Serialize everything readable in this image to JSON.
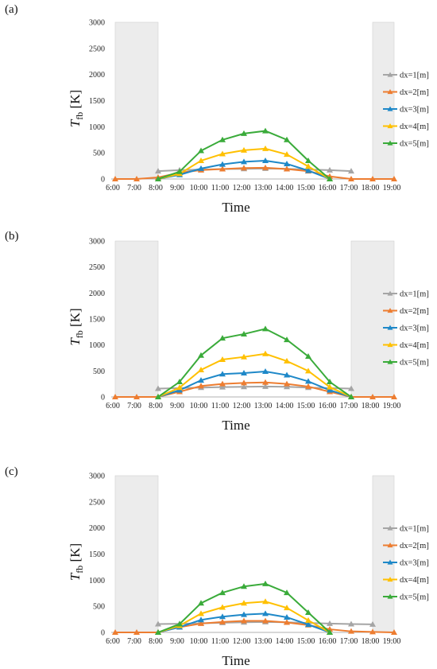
{
  "chart_data": [
    {
      "type": "line",
      "panel_label": "(a)",
      "xlabel": "Time",
      "ylabel_main": "T",
      "ylabel_sub": "fb",
      "ylabel_unit": " [K]",
      "categories": [
        "6:00",
        "7:00",
        "8:00",
        "9:00",
        "10:00",
        "11:00",
        "12:00",
        "13:00",
        "14:00",
        "15:00",
        "16:00",
        "17:00",
        "18:00",
        "19:00"
      ],
      "ylim": [
        0,
        3000
      ],
      "yticks": [
        0,
        500,
        1000,
        1500,
        2000,
        2500,
        3000
      ],
      "shaded_ranges": [
        [
          "6:00",
          "8:00"
        ],
        [
          "18:00",
          "19:00"
        ]
      ],
      "legend_position": "right",
      "series": [
        {
          "name": "dx=1[m]",
          "color": "#a5a5a5",
          "values": [
            null,
            null,
            150,
            170,
            180,
            190,
            195,
            200,
            195,
            180,
            170,
            150,
            null,
            null
          ]
        },
        {
          "name": "dx=2[m]",
          "color": "#ed7d31",
          "values": [
            0,
            0,
            30,
            120,
            170,
            190,
            210,
            215,
            190,
            150,
            50,
            0,
            0,
            0
          ]
        },
        {
          "name": "dx=3[m]",
          "color": "#1e88c8",
          "values": [
            null,
            null,
            0,
            80,
            200,
            280,
            330,
            350,
            290,
            160,
            0,
            null,
            null,
            null
          ]
        },
        {
          "name": "dx=4[m]",
          "color": "#ffc000",
          "values": [
            null,
            null,
            0,
            100,
            350,
            480,
            550,
            580,
            470,
            240,
            0,
            null,
            null,
            null
          ]
        },
        {
          "name": "dx=5[m]",
          "color": "#3aab3a",
          "values": [
            null,
            null,
            0,
            140,
            540,
            750,
            870,
            920,
            750,
            350,
            0,
            null,
            null,
            null
          ]
        }
      ]
    },
    {
      "type": "line",
      "panel_label": "(b)",
      "xlabel": "Time",
      "ylabel_main": "T",
      "ylabel_sub": "fb",
      "ylabel_unit": " [K]",
      "categories": [
        "6:00",
        "7:00",
        "8:00",
        "9:00",
        "10:00",
        "11:00",
        "12:00",
        "13:00",
        "14:00",
        "15:00",
        "16:00",
        "17:00",
        "18:00",
        "19:00"
      ],
      "ylim": [
        0,
        3000
      ],
      "yticks": [
        0,
        500,
        1000,
        1500,
        2000,
        2500,
        3000
      ],
      "shaded_ranges": [
        [
          "6:00",
          "8:00"
        ],
        [
          "17:00",
          "19:00"
        ]
      ],
      "legend_position": "right",
      "series": [
        {
          "name": "dx=1[m]",
          "color": "#a5a5a5",
          "values": [
            null,
            null,
            160,
            170,
            180,
            190,
            195,
            200,
            195,
            180,
            170,
            160,
            null,
            null
          ]
        },
        {
          "name": "dx=2[m]",
          "color": "#ed7d31",
          "values": [
            0,
            0,
            0,
            100,
            210,
            250,
            270,
            280,
            250,
            200,
            100,
            0,
            0,
            0
          ]
        },
        {
          "name": "dx=3[m]",
          "color": "#1e88c8",
          "values": [
            null,
            null,
            0,
            130,
            320,
            440,
            460,
            490,
            420,
            300,
            130,
            0,
            null,
            null
          ]
        },
        {
          "name": "dx=4[m]",
          "color": "#ffc000",
          "values": [
            null,
            null,
            0,
            180,
            520,
            720,
            770,
            830,
            690,
            500,
            190,
            0,
            null,
            null
          ]
        },
        {
          "name": "dx=5[m]",
          "color": "#3aab3a",
          "values": [
            null,
            null,
            0,
            290,
            800,
            1130,
            1210,
            1310,
            1100,
            780,
            290,
            0,
            null,
            null
          ]
        }
      ]
    },
    {
      "type": "line",
      "panel_label": "(c)",
      "xlabel": "Time",
      "ylabel_main": "T",
      "ylabel_sub": "fb",
      "ylabel_unit": " [K]",
      "categories": [
        "6:00",
        "7:00",
        "8:00",
        "9:00",
        "10:00",
        "11:00",
        "12:00",
        "13:00",
        "14:00",
        "15:00",
        "16:00",
        "17:00",
        "18:00",
        "19:00"
      ],
      "ylim": [
        0,
        3000
      ],
      "yticks": [
        0,
        500,
        1000,
        1500,
        2000,
        2500,
        3000
      ],
      "shaded_ranges": [
        [
          "6:00",
          "8:00"
        ],
        [
          "18:00",
          "19:00"
        ]
      ],
      "legend_position": "right",
      "series": [
        {
          "name": "dx=1[m]",
          "color": "#a5a5a5",
          "values": [
            null,
            null,
            160,
            165,
            175,
            185,
            195,
            200,
            195,
            180,
            170,
            160,
            155,
            null
          ]
        },
        {
          "name": "dx=2[m]",
          "color": "#ed7d31",
          "values": [
            0,
            0,
            0,
            100,
            170,
            200,
            220,
            220,
            190,
            140,
            60,
            20,
            10,
            0
          ]
        },
        {
          "name": "dx=3[m]",
          "color": "#1e88c8",
          "values": [
            null,
            null,
            0,
            100,
            240,
            300,
            340,
            360,
            290,
            150,
            0,
            null,
            null,
            null
          ]
        },
        {
          "name": "dx=4[m]",
          "color": "#ffc000",
          "values": [
            null,
            null,
            0,
            130,
            360,
            480,
            560,
            590,
            470,
            230,
            0,
            null,
            null,
            null
          ]
        },
        {
          "name": "dx=5[m]",
          "color": "#3aab3a",
          "values": [
            null,
            null,
            0,
            160,
            560,
            760,
            880,
            930,
            760,
            380,
            0,
            null,
            null,
            null
          ]
        }
      ]
    }
  ]
}
